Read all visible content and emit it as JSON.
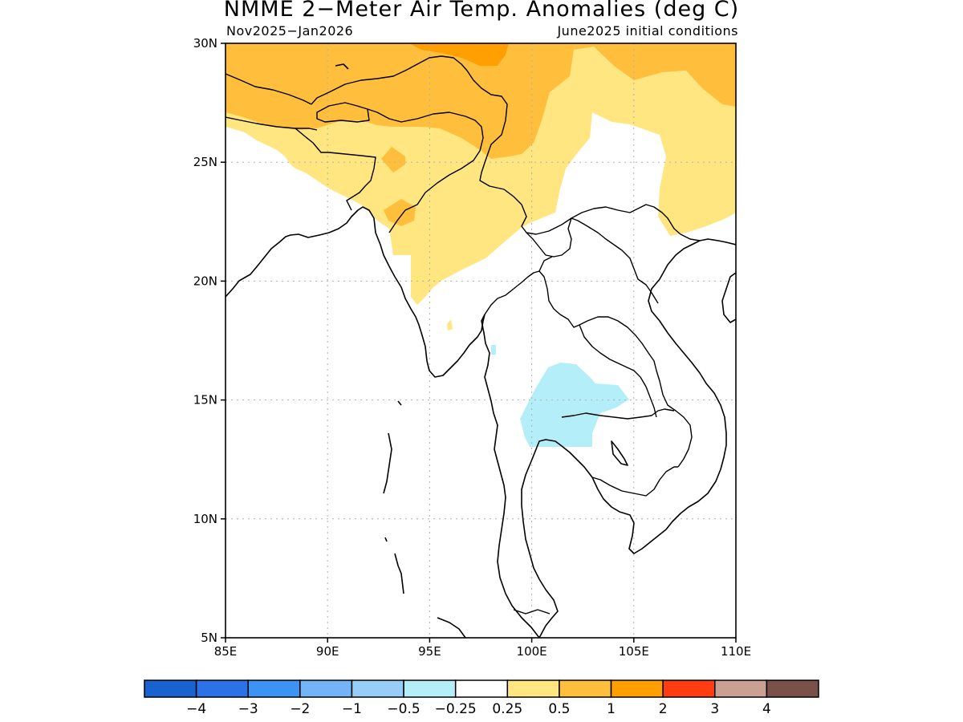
{
  "header": {
    "title": "NMME 2−Meter Air Temp. Anomalies (deg C)",
    "period": "Nov2025−Jan2026",
    "init": "June2025 initial conditions"
  },
  "map": {
    "lon_range": [
      85,
      110
    ],
    "lat_range": [
      5,
      30
    ],
    "lat_ticks": [
      {
        "value": 30,
        "label": "30N"
      },
      {
        "value": 25,
        "label": "25N"
      },
      {
        "value": 20,
        "label": "20N"
      },
      {
        "value": 15,
        "label": "15N"
      },
      {
        "value": 10,
        "label": "10N"
      },
      {
        "value": 5,
        "label": "5N"
      }
    ],
    "lon_ticks": [
      {
        "value": 85,
        "label": "85E"
      },
      {
        "value": 90,
        "label": "90E"
      },
      {
        "value": 95,
        "label": "95E"
      },
      {
        "value": 100,
        "label": "100E"
      },
      {
        "value": 105,
        "label": "105E"
      },
      {
        "value": 110,
        "label": "110E"
      }
    ],
    "gridlines": true
  },
  "colorbar": {
    "colors": [
      "#1863d0",
      "#2a72e6",
      "#3d93f3",
      "#72b4f6",
      "#96cef8",
      "#b4eef9",
      "#ffffff",
      "#ffe680",
      "#ffbe3c",
      "#ffa000",
      "#ff3c12",
      "#c9a091",
      "#7a5148"
    ],
    "labels": [
      "−4",
      "−3",
      "−2",
      "−1",
      "−0.5",
      "−0.25",
      "0.25",
      "0.5",
      "1",
      "2",
      "3",
      "4"
    ]
  }
}
